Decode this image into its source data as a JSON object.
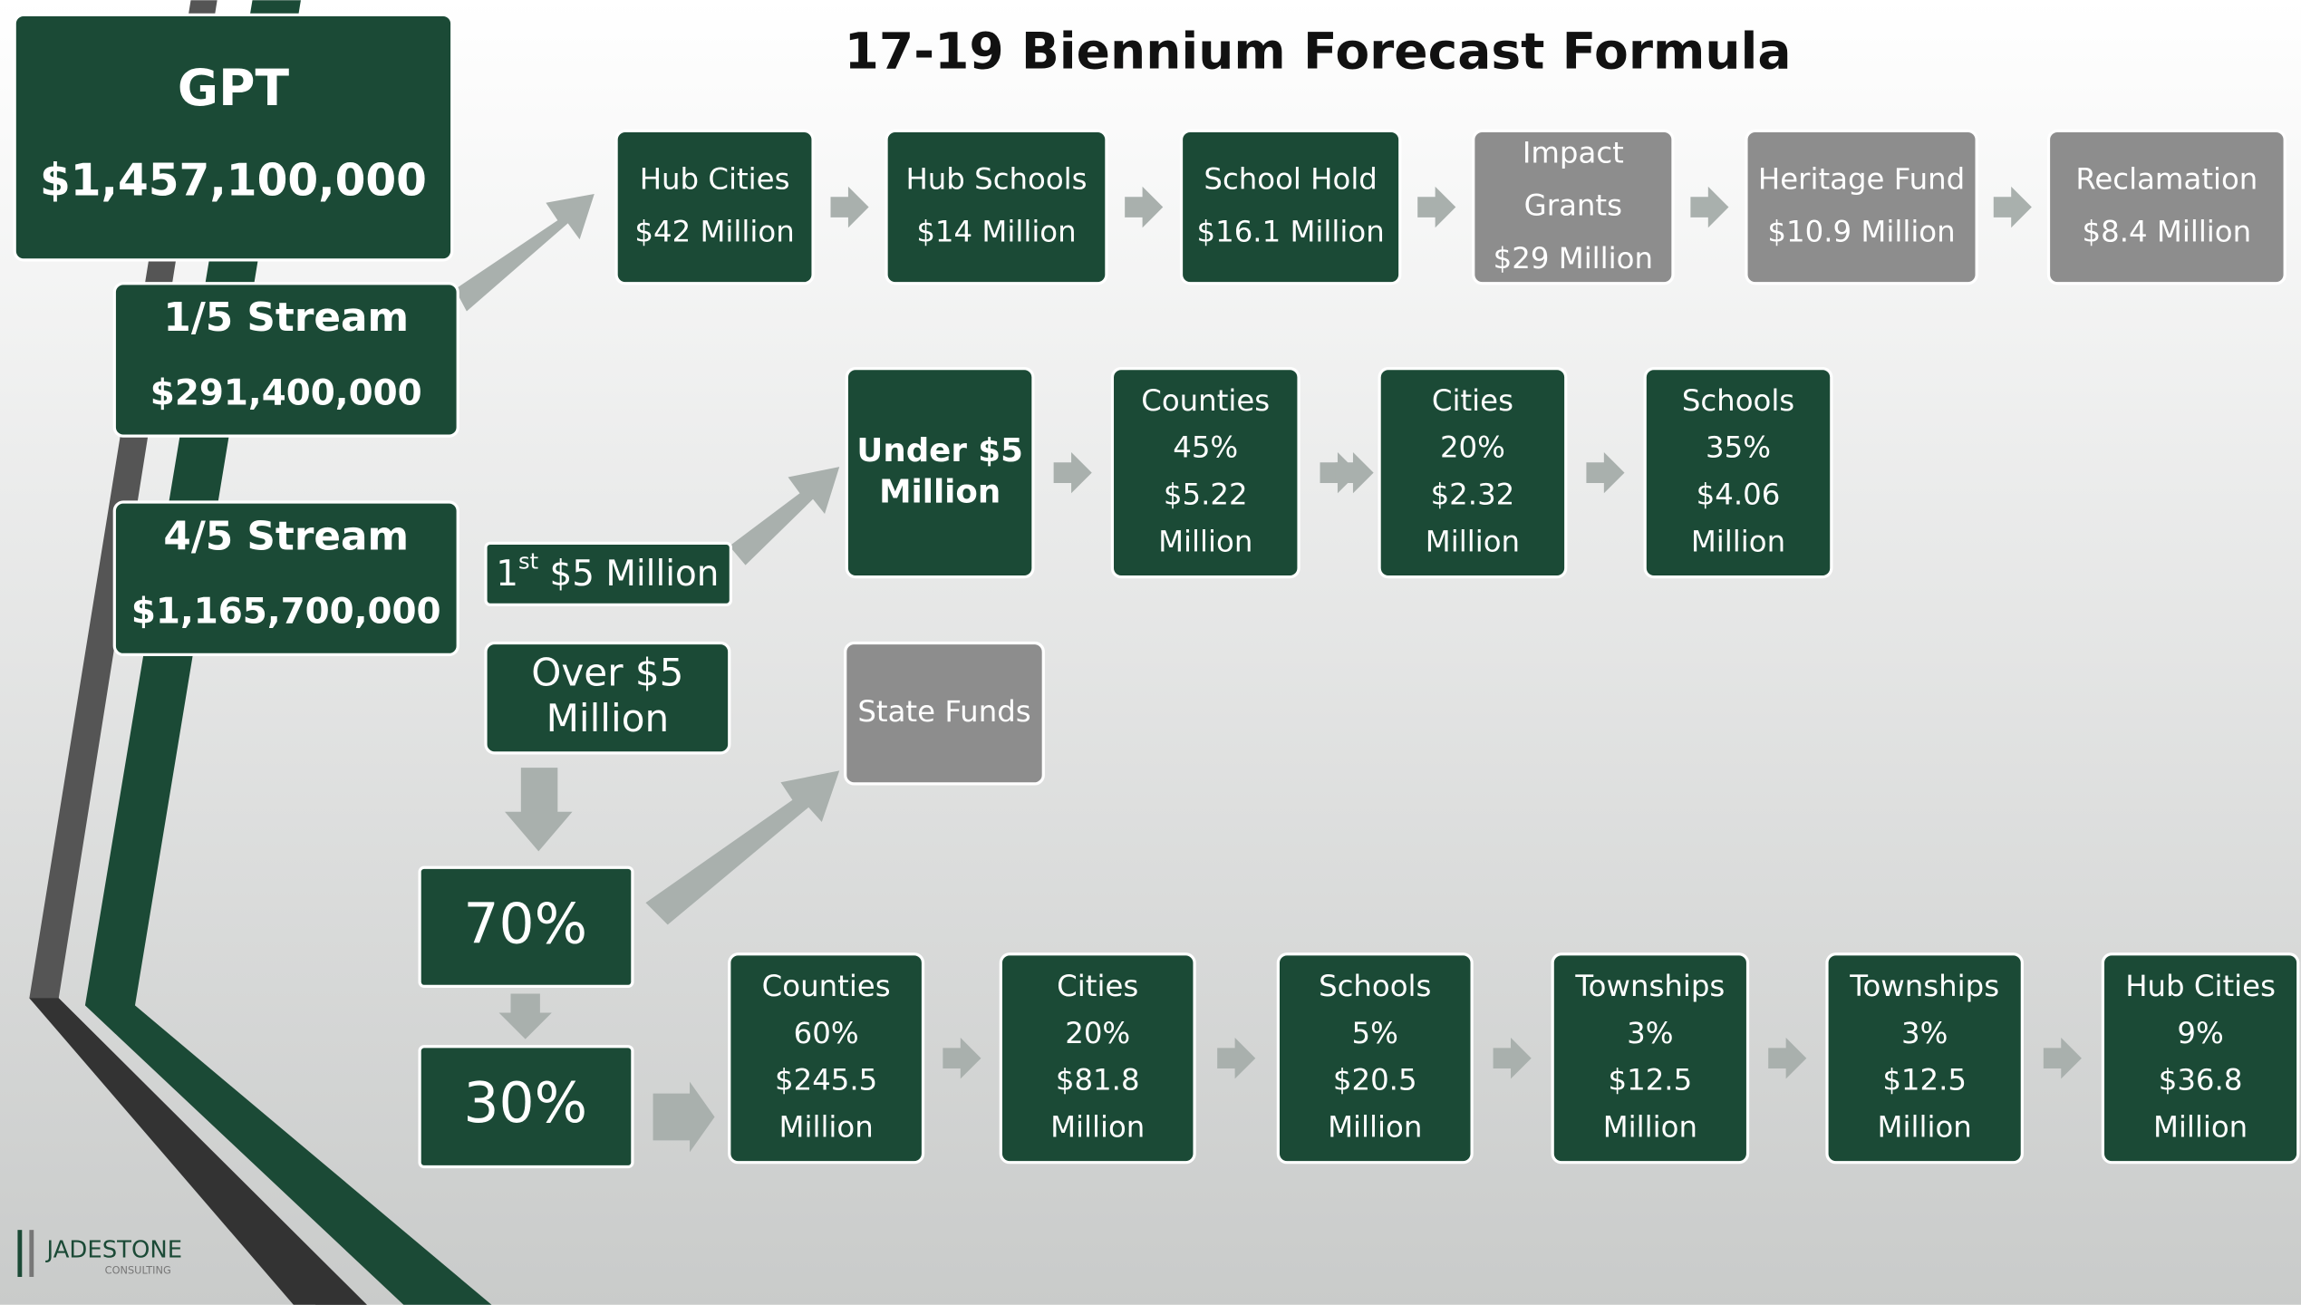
{
  "title": "17-19 Biennium Forecast Formula",
  "gpt": {
    "label": "GPT",
    "value": "$1,457,100,000"
  },
  "streams": [
    {
      "label": "1/5 Stream",
      "value": "$291,400,000"
    },
    {
      "label": "4/5 Stream",
      "value": "$1,165,700,000"
    }
  ],
  "row1": [
    {
      "lines": [
        "Hub Cities",
        "$42 Million"
      ],
      "style": "green"
    },
    {
      "lines": [
        "Hub Schools",
        "$14 Million"
      ],
      "style": "green"
    },
    {
      "lines": [
        "School Hold",
        "$16.1 Million"
      ],
      "style": "green"
    },
    {
      "lines": [
        "Impact",
        "Grants",
        "$29 Million"
      ],
      "style": "gray"
    },
    {
      "lines": [
        "Heritage Fund",
        "$10.9 Million"
      ],
      "style": "gray"
    },
    {
      "lines": [
        "Reclamation",
        "$8.4 Million"
      ],
      "style": "gray"
    }
  ],
  "first_split": {
    "num": "1",
    "sup": "st",
    "rest": " $5 Million"
  },
  "over_split": {
    "lines": [
      "Over $5",
      "Million"
    ]
  },
  "under": {
    "lines": [
      "Under $5",
      "Million"
    ]
  },
  "row2": [
    {
      "lines": [
        "Counties",
        "45%",
        "$5.22",
        "Million"
      ]
    },
    {
      "lines": [
        "Cities",
        "20%",
        "$2.32",
        "Million"
      ]
    },
    {
      "lines": [
        "Schools",
        "35%",
        "$4.06",
        "Million"
      ]
    }
  ],
  "state_funds": {
    "lines": [
      "State Funds"
    ]
  },
  "pct70": "70%",
  "pct30": "30%",
  "row3": [
    {
      "lines": [
        "Counties",
        "60%",
        "$245.5",
        "Million"
      ]
    },
    {
      "lines": [
        "Cities",
        "20%",
        "$81.8",
        "Million"
      ]
    },
    {
      "lines": [
        "Schools",
        "5%",
        "$20.5",
        "Million"
      ]
    },
    {
      "lines": [
        "Townships",
        "3%",
        "$12.5",
        "Million"
      ]
    },
    {
      "lines": [
        "Townships",
        "3%",
        "$12.5",
        "Million"
      ]
    },
    {
      "lines": [
        "Hub Cities",
        "9%",
        "$36.8",
        "Million"
      ]
    }
  ],
  "logo": {
    "name": "JADESTONE",
    "sub": "CONSULTING"
  }
}
